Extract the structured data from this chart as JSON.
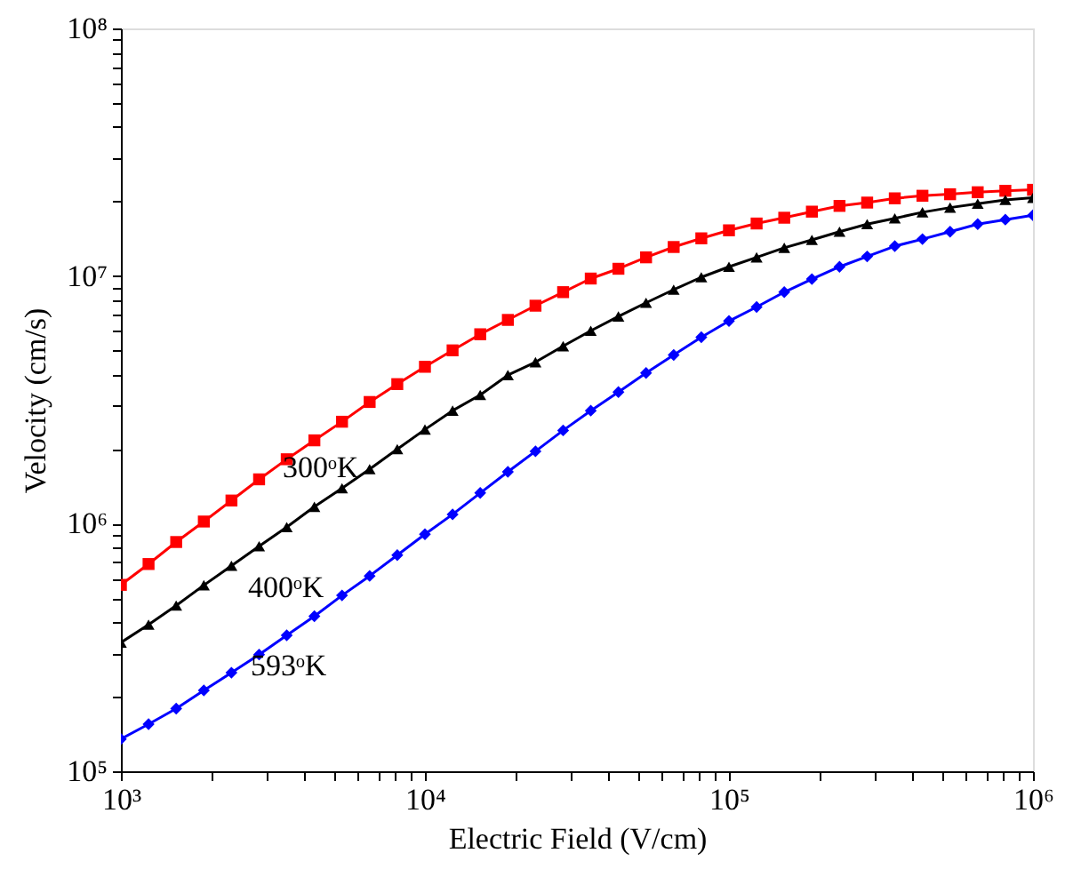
{
  "chart_data": {
    "type": "line",
    "xlabel": "Electric Field (V/cm)",
    "ylabel": "Velocity (cm/s)",
    "log": "xy",
    "grid": false,
    "legend": false,
    "line_style": "solid",
    "x": [
      1000,
      1233,
      1520,
      1874,
      2310,
      2848,
      3511,
      4329,
      5337,
      6579,
      8111,
      10000,
      12330,
      15200,
      18740,
      23100,
      28480,
      35110,
      43290,
      53370,
      65790,
      81110,
      100000,
      123300,
      152000,
      187400,
      231000,
      284800,
      351100,
      432900,
      533700,
      657900,
      811100,
      1000000
    ],
    "xlim": [
      1000,
      1000000
    ],
    "ylim": [
      100000,
      100000000
    ],
    "xticks": [
      {
        "value": 1000,
        "label": "10³"
      },
      {
        "value": 2000,
        "label": null
      },
      {
        "value": 3000,
        "label": null
      },
      {
        "value": 4000,
        "label": null
      },
      {
        "value": 5000,
        "label": null
      },
      {
        "value": 6000,
        "label": null
      },
      {
        "value": 7000,
        "label": null
      },
      {
        "value": 8000,
        "label": null
      },
      {
        "value": 9000,
        "label": null
      },
      {
        "value": 10000,
        "label": "10⁴"
      },
      {
        "value": 20000,
        "label": null
      },
      {
        "value": 30000,
        "label": null
      },
      {
        "value": 40000,
        "label": null
      },
      {
        "value": 50000,
        "label": null
      },
      {
        "value": 60000,
        "label": null
      },
      {
        "value": 70000,
        "label": null
      },
      {
        "value": 80000,
        "label": null
      },
      {
        "value": 90000,
        "label": null
      },
      {
        "value": 100000,
        "label": "10⁵"
      },
      {
        "value": 200000,
        "label": null
      },
      {
        "value": 300000,
        "label": null
      },
      {
        "value": 400000,
        "label": null
      },
      {
        "value": 500000,
        "label": null
      },
      {
        "value": 600000,
        "label": null
      },
      {
        "value": 700000,
        "label": null
      },
      {
        "value": 800000,
        "label": null
      },
      {
        "value": 900000,
        "label": null
      },
      {
        "value": 1000000,
        "label": "10⁶"
      }
    ],
    "yticks": [
      {
        "value": 100000,
        "label": "10⁵"
      },
      {
        "value": 200000,
        "label": null
      },
      {
        "value": 300000,
        "label": null
      },
      {
        "value": 400000,
        "label": null
      },
      {
        "value": 500000,
        "label": null
      },
      {
        "value": 600000,
        "label": null
      },
      {
        "value": 700000,
        "label": null
      },
      {
        "value": 800000,
        "label": null
      },
      {
        "value": 900000,
        "label": null
      },
      {
        "value": 1000000,
        "label": "10⁶"
      },
      {
        "value": 2000000,
        "label": null
      },
      {
        "value": 3000000,
        "label": null
      },
      {
        "value": 4000000,
        "label": null
      },
      {
        "value": 5000000,
        "label": null
      },
      {
        "value": 6000000,
        "label": null
      },
      {
        "value": 7000000,
        "label": null
      },
      {
        "value": 8000000,
        "label": null
      },
      {
        "value": 9000000,
        "label": null
      },
      {
        "value": 10000000,
        "label": "10⁷"
      },
      {
        "value": 20000000,
        "label": null
      },
      {
        "value": 30000000,
        "label": null
      },
      {
        "value": 40000000,
        "label": null
      },
      {
        "value": 50000000,
        "label": null
      },
      {
        "value": 60000000,
        "label": null
      },
      {
        "value": 70000000,
        "label": null
      },
      {
        "value": 80000000,
        "label": null
      },
      {
        "value": 90000000,
        "label": null
      },
      {
        "value": 100000000,
        "label": "10⁸"
      }
    ],
    "series": [
      {
        "name": "300ᵒK",
        "color": "#ff0000",
        "marker": "square",
        "values": [
          566000,
          687000,
          843000,
          1020000,
          1240000,
          1510000,
          1820000,
          2170000,
          2580000,
          3100000,
          3660000,
          4300000,
          5010000,
          5820000,
          6650000,
          7590000,
          8610000,
          9770000,
          10700000,
          11900000,
          13100000,
          14200000,
          15300000,
          16300000,
          17200000,
          18200000,
          19200000,
          19800000,
          20600000,
          21100000,
          21400000,
          21800000,
          22100000,
          22300000
        ]
      },
      {
        "name": "400ᵒK",
        "color": "#000000",
        "marker": "triangle",
        "values": [
          331000,
          391000,
          467000,
          564000,
          676000,
          811000,
          968000,
          1170000,
          1390000,
          1660000,
          2000000,
          2400000,
          2860000,
          3310000,
          3980000,
          4490000,
          5210000,
          6010000,
          6870000,
          7800000,
          8810000,
          9890000,
          10900000,
          11900000,
          13000000,
          14000000,
          15100000,
          16200000,
          17100000,
          18100000,
          18900000,
          19600000,
          20300000,
          20700000
        ]
      },
      {
        "name": "593ᵒK",
        "color": "#0000ff",
        "marker": "diamond",
        "values": [
          135000,
          155000,
          179000,
          212000,
          250000,
          296000,
          354000,
          423000,
          513000,
          615000,
          746000,
          906000,
          1090000,
          1330000,
          1620000,
          1960000,
          2380000,
          2860000,
          3400000,
          4060000,
          4800000,
          5660000,
          6580000,
          7500000,
          8610000,
          9720000,
          10900000,
          12000000,
          13200000,
          14100000,
          15100000,
          16200000,
          16900000,
          17600000
        ]
      }
    ]
  }
}
